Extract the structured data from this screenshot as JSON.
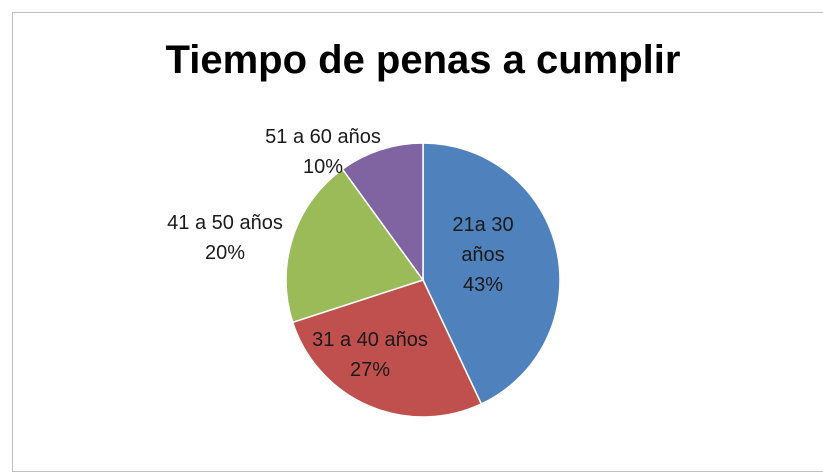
{
  "chart_data": {
    "type": "pie",
    "title": "Tiempo de penas a cumplir",
    "categories": [
      "21a 30 años",
      "31 a 40 años",
      "41 a 50 años",
      "51 a 60 años"
    ],
    "values": [
      43,
      27,
      20,
      10
    ],
    "value_labels": [
      "43%",
      "27%",
      "20%",
      "10%"
    ],
    "colors": [
      "#4f81bd",
      "#c0504d",
      "#9bbb59",
      "#8064a2"
    ]
  }
}
